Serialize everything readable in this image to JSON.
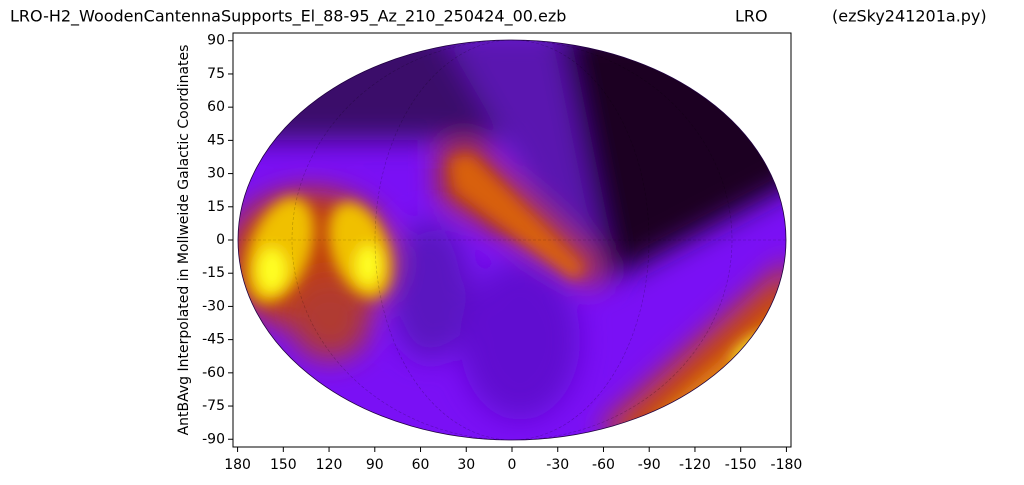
{
  "chart_data": {
    "type": "contour",
    "title": "LRO-H2_WoodenCantennaSupports_El_88-95_Az_210_250424_00.ezb",
    "title_center": "LRO",
    "title_right": "(ezSky241201a.py)",
    "ylabel": "AntBAvg Interpolated in Mollweide Galactic Coordinates",
    "xlim": [
      183,
      -183
    ],
    "ylim": [
      -93.5,
      93.5
    ],
    "xticks": [
      180,
      150,
      120,
      90,
      60,
      30,
      0,
      -30,
      -60,
      -90,
      -120,
      -150,
      -180
    ],
    "yticks": [
      90,
      75,
      60,
      45,
      30,
      15,
      0,
      -15,
      -30,
      -45,
      -60,
      -75,
      -90
    ]
  }
}
